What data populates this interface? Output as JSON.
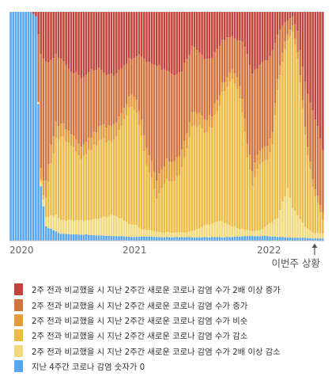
{
  "chart_data": {
    "type": "bar",
    "stacked": "percent",
    "x_ticks": [
      "2020",
      "2021",
      "2022"
    ],
    "current_marker_label": "이번주 상황",
    "bar_count": 125,
    "categories_order_bottom_to_top": [
      "zero",
      "dec2x",
      "dec",
      "flat",
      "inc",
      "inc2x"
    ],
    "series": [
      {
        "key": "inc2x",
        "name": "2주 전과 비교했을 시 지난 2주간 새로운 코로나 감염 수가 2배 이상 증가",
        "color": "#c0443b"
      },
      {
        "key": "inc",
        "name": "2주 전과 비교했을 시 지난 2주간 새로운 코로나 감염 수가 증가",
        "color": "#d2733f"
      },
      {
        "key": "flat",
        "name": "2주 전과 비교했을 시 지난 2주간 새로운 코로나 감염 수가 비슷",
        "color": "#e39b3c"
      },
      {
        "key": "dec",
        "name": "2주 전과 비교했을 시 지난 2주간 새로운 코로나 감염 수가 감소",
        "color": "#ecbb45"
      },
      {
        "key": "dec2x",
        "name": "2주 전과 비교했을 시 지난 2주간 새로운 코로나 감염 수가 2배 이상 감소",
        "color": "#f2d97c"
      },
      {
        "key": "zero",
        "name": "지난 4주간 코로나 감염 숫자가 0",
        "color": "#56a6f0"
      }
    ],
    "share_percent_keypoints": {
      "zero": [
        [
          0,
          100
        ],
        [
          8,
          100
        ],
        [
          10,
          98
        ],
        [
          11,
          60
        ],
        [
          12,
          25
        ],
        [
          13,
          14
        ],
        [
          14,
          6
        ],
        [
          16,
          5
        ],
        [
          20,
          3
        ],
        [
          40,
          2
        ],
        [
          60,
          1.5
        ],
        [
          80,
          1.5
        ],
        [
          100,
          2
        ],
        [
          110,
          1.5
        ],
        [
          124,
          1
        ]
      ],
      "dec2x": [
        [
          0,
          0
        ],
        [
          10,
          0
        ],
        [
          12,
          2
        ],
        [
          14,
          4
        ],
        [
          16,
          6
        ],
        [
          18,
          7
        ],
        [
          20,
          6
        ],
        [
          30,
          6
        ],
        [
          40,
          9
        ],
        [
          45,
          7
        ],
        [
          50,
          5
        ],
        [
          52,
          3
        ],
        [
          60,
          2
        ],
        [
          70,
          2
        ],
        [
          75,
          4
        ],
        [
          80,
          6
        ],
        [
          84,
          7
        ],
        [
          88,
          5
        ],
        [
          92,
          3
        ],
        [
          96,
          2
        ],
        [
          100,
          3
        ],
        [
          106,
          8
        ],
        [
          108,
          16
        ],
        [
          110,
          22
        ],
        [
          112,
          14
        ],
        [
          116,
          6
        ],
        [
          120,
          3
        ],
        [
          124,
          2
        ]
      ],
      "dec": [
        [
          0,
          0
        ],
        [
          11,
          0
        ],
        [
          13,
          2
        ],
        [
          14,
          8
        ],
        [
          16,
          22
        ],
        [
          18,
          32
        ],
        [
          20,
          37
        ],
        [
          22,
          36
        ],
        [
          24,
          32
        ],
        [
          28,
          26
        ],
        [
          32,
          31
        ],
        [
          36,
          34
        ],
        [
          40,
          32
        ],
        [
          44,
          38
        ],
        [
          46,
          50
        ],
        [
          48,
          54
        ],
        [
          50,
          49
        ],
        [
          52,
          39
        ],
        [
          54,
          26
        ],
        [
          58,
          14
        ],
        [
          60,
          18
        ],
        [
          62,
          22
        ],
        [
          65,
          21
        ],
        [
          68,
          27
        ],
        [
          72,
          43
        ],
        [
          74,
          46
        ],
        [
          76,
          42
        ],
        [
          78,
          38
        ],
        [
          81,
          44
        ],
        [
          84,
          56
        ],
        [
          86,
          62
        ],
        [
          88,
          66
        ],
        [
          90,
          61
        ],
        [
          92,
          50
        ],
        [
          94,
          30
        ],
        [
          96,
          20
        ],
        [
          98,
          25
        ],
        [
          100,
          30
        ],
        [
          102,
          26
        ],
        [
          104,
          32
        ],
        [
          106,
          55
        ],
        [
          108,
          62
        ],
        [
          110,
          72
        ],
        [
          112,
          80
        ],
        [
          114,
          72
        ],
        [
          116,
          50
        ],
        [
          120,
          22
        ],
        [
          124,
          6
        ]
      ],
      "flat": [
        [
          0,
          0
        ],
        [
          11,
          0
        ],
        [
          12,
          5
        ],
        [
          14,
          8
        ],
        [
          16,
          8
        ],
        [
          18,
          7
        ],
        [
          20,
          6
        ],
        [
          24,
          5
        ],
        [
          30,
          5
        ],
        [
          36,
          6
        ],
        [
          40,
          7
        ],
        [
          46,
          5
        ],
        [
          50,
          6
        ],
        [
          56,
          7
        ],
        [
          60,
          8
        ],
        [
          66,
          8
        ],
        [
          72,
          6
        ],
        [
          80,
          5
        ],
        [
          86,
          4
        ],
        [
          90,
          5
        ],
        [
          96,
          6
        ],
        [
          100,
          6
        ],
        [
          106,
          5
        ],
        [
          110,
          3
        ],
        [
          114,
          3
        ],
        [
          118,
          4
        ],
        [
          124,
          3
        ]
      ],
      "inc": [
        [
          0,
          0
        ],
        [
          10,
          0
        ],
        [
          11,
          30
        ],
        [
          12,
          50
        ],
        [
          13,
          55
        ],
        [
          14,
          52
        ],
        [
          16,
          38
        ],
        [
          18,
          30
        ],
        [
          20,
          28
        ],
        [
          24,
          26
        ],
        [
          28,
          29
        ],
        [
          32,
          28
        ],
        [
          36,
          24
        ],
        [
          40,
          22
        ],
        [
          44,
          19
        ],
        [
          48,
          17
        ],
        [
          50,
          20
        ],
        [
          54,
          35
        ],
        [
          58,
          46
        ],
        [
          60,
          42
        ],
        [
          62,
          38
        ],
        [
          66,
          35
        ],
        [
          68,
          34
        ],
        [
          72,
          28
        ],
        [
          76,
          27
        ],
        [
          80,
          24
        ],
        [
          84,
          20
        ],
        [
          88,
          15
        ],
        [
          90,
          16
        ],
        [
          92,
          24
        ],
        [
          94,
          38
        ],
        [
          96,
          40
        ],
        [
          100,
          36
        ],
        [
          104,
          34
        ],
        [
          106,
          20
        ],
        [
          108,
          12
        ],
        [
          110,
          6
        ],
        [
          112,
          4
        ],
        [
          116,
          14
        ],
        [
          118,
          26
        ],
        [
          120,
          34
        ],
        [
          122,
          32
        ],
        [
          124,
          28
        ]
      ],
      "inc2x": [
        [
          0,
          0
        ],
        [
          8,
          0
        ],
        [
          10,
          2
        ],
        [
          11,
          10
        ],
        [
          12,
          18
        ],
        [
          14,
          22
        ],
        [
          16,
          21
        ],
        [
          18,
          19
        ],
        [
          20,
          20
        ],
        [
          24,
          25
        ],
        [
          28,
          27
        ],
        [
          32,
          24
        ],
        [
          36,
          25
        ],
        [
          40,
          28
        ],
        [
          44,
          24
        ],
        [
          48,
          22
        ],
        [
          50,
          19
        ],
        [
          52,
          18
        ],
        [
          54,
          20
        ],
        [
          58,
          22
        ],
        [
          60,
          25
        ],
        [
          64,
          26
        ],
        [
          68,
          24
        ],
        [
          72,
          15
        ],
        [
          76,
          19
        ],
        [
          80,
          19
        ],
        [
          84,
          13
        ],
        [
          88,
          11
        ],
        [
          90,
          13
        ],
        [
          92,
          12
        ],
        [
          94,
          18
        ],
        [
          96,
          26
        ],
        [
          100,
          21
        ],
        [
          104,
          17
        ],
        [
          106,
          10
        ],
        [
          108,
          6
        ],
        [
          110,
          4
        ],
        [
          112,
          2
        ],
        [
          114,
          9
        ],
        [
          116,
          24
        ],
        [
          118,
          40
        ],
        [
          120,
          50
        ],
        [
          122,
          56
        ],
        [
          124,
          60
        ]
      ]
    }
  }
}
